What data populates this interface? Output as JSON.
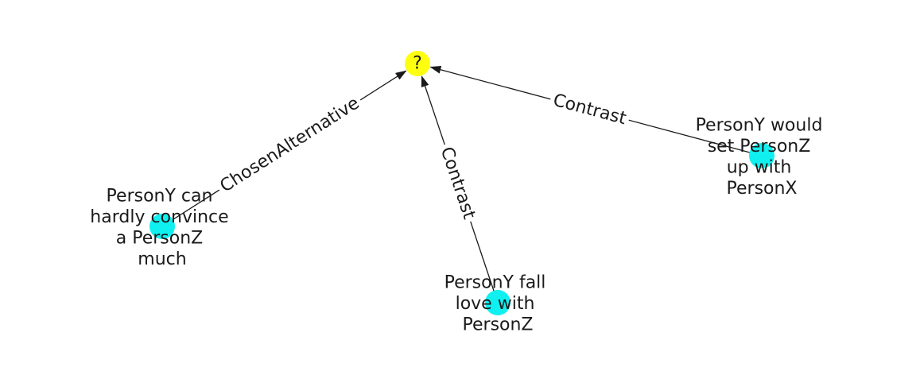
{
  "diagram": {
    "colors": {
      "question_node": "#ffff10",
      "node": "#10f0f0",
      "edge": "#1a1a1a",
      "label_background": "#ffffff",
      "text": "#1a1a1a"
    },
    "nodes": [
      {
        "id": "q",
        "glyph": "?",
        "lines": []
      },
      {
        "id": "n1",
        "glyph": "",
        "lines": [
          "PersonY can",
          "hardly convince",
          "a PersonZ",
          "much"
        ]
      },
      {
        "id": "n2",
        "glyph": "",
        "lines": [
          "PersonY fall",
          "love with",
          "PersonZ"
        ]
      },
      {
        "id": "n3",
        "glyph": "",
        "lines": [
          "PersonY would",
          "set PersonZ",
          "up with",
          "PersonX"
        ]
      }
    ],
    "edges": [
      {
        "from": "n1",
        "to": "q",
        "label": "ChosenAlternative"
      },
      {
        "from": "n2",
        "to": "q",
        "label": "Contrast"
      },
      {
        "from": "n3",
        "to": "q",
        "label": "Contrast"
      }
    ]
  }
}
